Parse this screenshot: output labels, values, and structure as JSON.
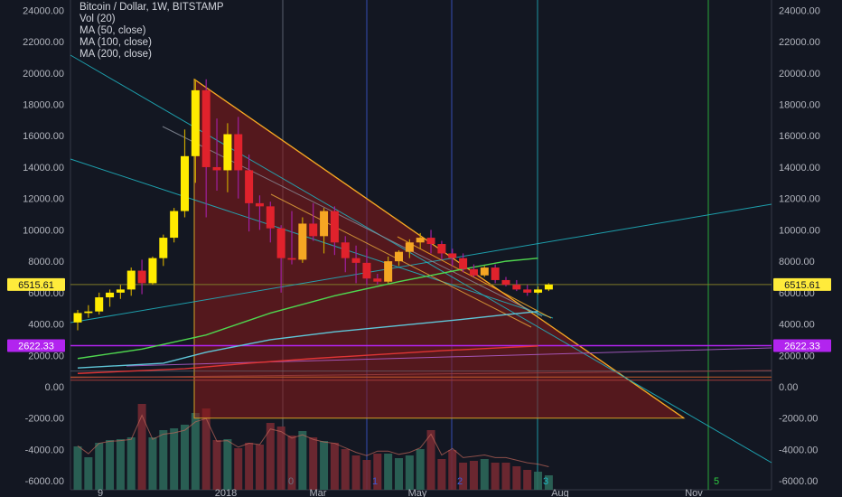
{
  "legend": {
    "title": "Bitcoin / Dollar, 1W, BITSTAMP",
    "indicators": [
      "Vol (20)",
      "MA (50, close)",
      "MA (100, close)",
      "MA (200, close)"
    ]
  },
  "colors": {
    "background": "#131722",
    "up_candle": "#ffeb00",
    "up_candle_alt": "#f5a623",
    "down_candle": "#e0222c",
    "triangle_fill": "#8b1a1a",
    "ma50": "#4fd64f",
    "ma100": "#5fc6d8",
    "ma200": "#e03535",
    "price_badge": "#ffeb3b",
    "level_badge": "#b224ef"
  },
  "chart_data": {
    "type": "candlestick",
    "title": "Bitcoin / Dollar, 1W, BITSTAMP",
    "ylim": [
      -6500,
      25000
    ],
    "y_ticks": [
      24000,
      22000,
      20000,
      18000,
      16000,
      14000,
      12000,
      10000,
      8000,
      6000,
      4000,
      2000,
      0,
      -2000,
      -4000,
      -6000
    ],
    "y_tick_labels": [
      "24000.00",
      "22000.00",
      "20000.00",
      "18000.00",
      "16000.00",
      "14000.00",
      "12000.00",
      "10000.00",
      "8000.00",
      "6000.00",
      "4000.00",
      "2000.00",
      "0.00",
      "-2000.00",
      "-4000.00",
      "-6000.00"
    ],
    "x_labels": [
      "9",
      "2018",
      "Mar",
      "May",
      "Aug",
      "Nov"
    ],
    "current_price_label": "6515.61",
    "current_price": 6515.61,
    "level_label": "2622.33",
    "level": 2622.33,
    "cycle_labels": [
      "0",
      "1",
      "2",
      "3",
      "5"
    ],
    "candles": [
      {
        "o": 4100,
        "h": 4900,
        "l": 3600,
        "c": 4700
      },
      {
        "o": 4700,
        "h": 5200,
        "l": 4400,
        "c": 4800
      },
      {
        "o": 4800,
        "h": 6000,
        "l": 4600,
        "c": 5700
      },
      {
        "o": 5700,
        "h": 6200,
        "l": 5100,
        "c": 6000
      },
      {
        "o": 6000,
        "h": 6500,
        "l": 5600,
        "c": 6200
      },
      {
        "o": 6200,
        "h": 7600,
        "l": 5800,
        "c": 7400
      },
      {
        "o": 7400,
        "h": 8100,
        "l": 5900,
        "c": 6600
      },
      {
        "o": 6600,
        "h": 8300,
        "l": 6500,
        "c": 8200
      },
      {
        "o": 8200,
        "h": 9700,
        "l": 7700,
        "c": 9500
      },
      {
        "o": 9500,
        "h": 11400,
        "l": 9200,
        "c": 11200
      },
      {
        "o": 11200,
        "h": 16400,
        "l": 10800,
        "c": 14700
      },
      {
        "o": 14700,
        "h": 19600,
        "l": 13000,
        "c": 18900
      },
      {
        "o": 18900,
        "h": 19600,
        "l": 10800,
        "c": 14000
      },
      {
        "o": 14000,
        "h": 17100,
        "l": 12500,
        "c": 13800
      },
      {
        "o": 13800,
        "h": 16800,
        "l": 12400,
        "c": 16100
      },
      {
        "o": 16100,
        "h": 17200,
        "l": 12000,
        "c": 13800
      },
      {
        "o": 13800,
        "h": 14800,
        "l": 9900,
        "c": 11700
      },
      {
        "o": 11700,
        "h": 12200,
        "l": 10000,
        "c": 11500
      },
      {
        "o": 11500,
        "h": 11800,
        "l": 9200,
        "c": 10100
      },
      {
        "o": 10100,
        "h": 10300,
        "l": 6000,
        "c": 8200
      },
      {
        "o": 8200,
        "h": 11200,
        "l": 7800,
        "c": 8100
      },
      {
        "o": 8100,
        "h": 10800,
        "l": 7900,
        "c": 10400
      },
      {
        "o": 10400,
        "h": 11700,
        "l": 9300,
        "c": 9600
      },
      {
        "o": 9600,
        "h": 11400,
        "l": 8500,
        "c": 11200
      },
      {
        "o": 11200,
        "h": 11500,
        "l": 8400,
        "c": 9200
      },
      {
        "o": 9200,
        "h": 9600,
        "l": 7300,
        "c": 8200
      },
      {
        "o": 8200,
        "h": 9000,
        "l": 6600,
        "c": 7900
      },
      {
        "o": 7900,
        "h": 8800,
        "l": 6500,
        "c": 6900
      },
      {
        "o": 6900,
        "h": 7200,
        "l": 6500,
        "c": 6700
      },
      {
        "o": 6700,
        "h": 8300,
        "l": 6600,
        "c": 8000
      },
      {
        "o": 8000,
        "h": 8700,
        "l": 7700,
        "c": 8600
      },
      {
        "o": 8600,
        "h": 9400,
        "l": 8200,
        "c": 9200
      },
      {
        "o": 9200,
        "h": 9800,
        "l": 8800,
        "c": 9500
      },
      {
        "o": 9500,
        "h": 10000,
        "l": 8500,
        "c": 9100
      },
      {
        "o": 9100,
        "h": 9300,
        "l": 8100,
        "c": 8500
      },
      {
        "o": 8500,
        "h": 8800,
        "l": 7700,
        "c": 8200
      },
      {
        "o": 8200,
        "h": 8500,
        "l": 7300,
        "c": 7500
      },
      {
        "o": 7500,
        "h": 7800,
        "l": 7000,
        "c": 7100
      },
      {
        "o": 7100,
        "h": 7700,
        "l": 7000,
        "c": 7600
      },
      {
        "o": 7600,
        "h": 7800,
        "l": 6600,
        "c": 6800
      },
      {
        "o": 6800,
        "h": 7000,
        "l": 6400,
        "c": 6500
      },
      {
        "o": 6500,
        "h": 6800,
        "l": 6100,
        "c": 6200
      },
      {
        "o": 6200,
        "h": 6500,
        "l": 5800,
        "c": 6000
      },
      {
        "o": 6000,
        "h": 6400,
        "l": 5900,
        "c": 6200
      },
      {
        "o": 6200,
        "h": 6600,
        "l": 6100,
        "c": 6515
      }
    ],
    "volume": [
      0.48,
      0.36,
      0.52,
      0.55,
      0.56,
      0.58,
      0.95,
      0.58,
      0.66,
      0.68,
      0.72,
      0.85,
      0.9,
      0.55,
      0.56,
      0.46,
      0.52,
      0.5,
      0.74,
      0.7,
      0.6,
      0.65,
      0.58,
      0.54,
      0.52,
      0.45,
      0.38,
      0.33,
      0.4,
      0.4,
      0.35,
      0.38,
      0.45,
      0.66,
      0.34,
      0.44,
      0.3,
      0.32,
      0.34,
      0.3,
      0.3,
      0.26,
      0.22,
      0.2,
      0.16
    ],
    "ma50": [
      [
        0,
        1800
      ],
      [
        6,
        2400
      ],
      [
        12,
        3300
      ],
      [
        18,
        4700
      ],
      [
        24,
        5800
      ],
      [
        30,
        6700
      ],
      [
        36,
        7500
      ],
      [
        40,
        8000
      ],
      [
        43,
        8200
      ]
    ],
    "ma100": [
      [
        0,
        1200
      ],
      [
        8,
        1500
      ],
      [
        12,
        2200
      ],
      [
        18,
        3000
      ],
      [
        24,
        3500
      ],
      [
        30,
        3900
      ],
      [
        36,
        4300
      ],
      [
        40,
        4600
      ],
      [
        43,
        4800
      ]
    ],
    "ma200": [
      [
        0,
        850
      ],
      [
        10,
        1150
      ],
      [
        16,
        1500
      ],
      [
        22,
        1800
      ],
      [
        28,
        2050
      ],
      [
        34,
        2300
      ],
      [
        40,
        2500
      ],
      [
        43,
        2600
      ]
    ]
  }
}
